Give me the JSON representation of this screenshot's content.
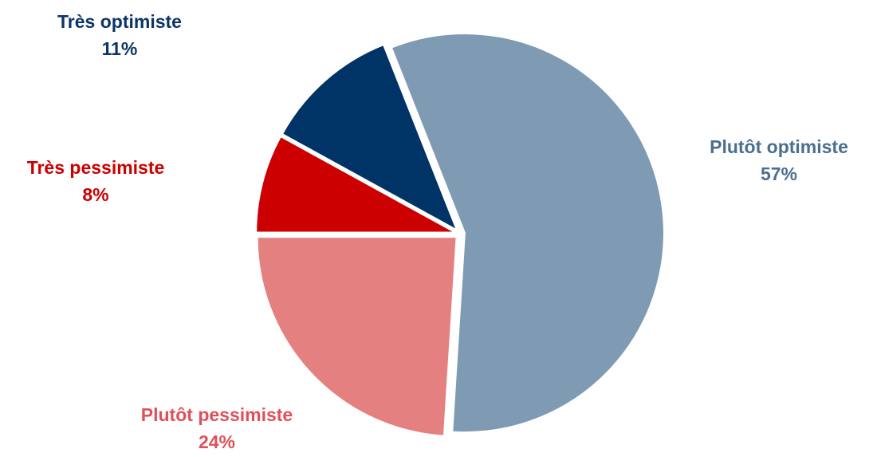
{
  "chart_data": {
    "type": "pie",
    "title": "",
    "start_angle_deg": -21.6,
    "direction": "clockwise",
    "slices": [
      {
        "label": "Plutôt optimiste",
        "value": 57,
        "value_label": "57%",
        "color": "#7f9bb4",
        "label_color": "#4a6f90"
      },
      {
        "label": "Plutôt pessimiste",
        "value": 24,
        "value_label": "24%",
        "color": "#e48080",
        "label_color": "#e0505a"
      },
      {
        "label": "Très pessimiste",
        "value": 8,
        "value_label": "8%",
        "color": "#cc0000",
        "label_color": "#cc0000"
      },
      {
        "label": "Très optimiste",
        "value": 11,
        "value_label": "11%",
        "color": "#003366",
        "label_color": "#0b3566"
      }
    ]
  }
}
